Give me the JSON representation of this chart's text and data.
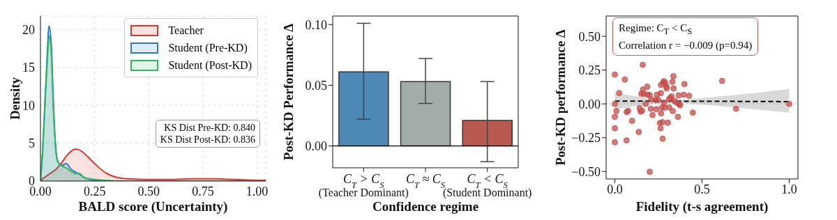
{
  "chart_data": [
    {
      "type": "area",
      "xlabel": "BALD score (Uncertainty)",
      "ylabel": "Density",
      "x": [
        0,
        0.01,
        0.02,
        0.03,
        0.04,
        0.05,
        0.06,
        0.07,
        0.08,
        0.1,
        0.12,
        0.14,
        0.16,
        0.18,
        0.2,
        0.25,
        0.3,
        0.35,
        0.4,
        0.5,
        0.6,
        0.7,
        0.8,
        0.9,
        1.0,
        1.04
      ],
      "series": [
        {
          "name": "Teacher",
          "color": "#d03a2f",
          "values": [
            0,
            0.3,
            0.5,
            0.7,
            0.9,
            1.1,
            1.3,
            1.5,
            1.8,
            2.5,
            3.3,
            3.9,
            4.2,
            4.1,
            3.7,
            2.3,
            1.1,
            0.5,
            0.3,
            0.2,
            0.2,
            0.3,
            0.3,
            0.2,
            0.1,
            0.1
          ]
        },
        {
          "name": "Student (Pre-KD)",
          "color": "#2a7ac8",
          "values": [
            0,
            4,
            10,
            16,
            20.5,
            18,
            10,
            4.5,
            2.6,
            2.1,
            2.3,
            1.6,
            1.2,
            0.9,
            0.5,
            0.1,
            0,
            0,
            0,
            0,
            0,
            0,
            0,
            0,
            0,
            0
          ]
        },
        {
          "name": "Student (Post-KD)",
          "color": "#2db55d",
          "values": [
            0,
            4,
            9.5,
            15,
            19.2,
            17,
            9.5,
            4.5,
            2.5,
            2.0,
            1.7,
            1.3,
            1.0,
            1.0,
            0.5,
            0.2,
            0.1,
            0,
            0,
            0,
            0,
            0,
            0,
            0,
            0,
            0
          ]
        }
      ],
      "xlim": [
        0,
        1.04
      ],
      "ylim": [
        0,
        21.8
      ],
      "xticks": [
        {
          "value": 0,
          "label": "0.00"
        },
        {
          "value": 0.25,
          "label": "0.25"
        },
        {
          "value": 0.5,
          "label": "0.50"
        },
        {
          "value": 0.75,
          "label": "0.75"
        },
        {
          "value": 1,
          "label": "1.00"
        }
      ],
      "yticks": [
        0,
        5,
        10,
        15,
        20
      ],
      "grid": true,
      "legend": "top right",
      "annotations": [
        "KS Dist Pre-KD: 0.840",
        "KS Dist Post-KD: 0.836"
      ]
    },
    {
      "type": "bar",
      "xlabel": "Confidence regime",
      "ylabel": "Post-KD Performance Δ",
      "categories": [
        "C$_{T}$ > C$_{S}$\n(Teacher Dominant)",
        "C$_{T}$ ≈ C$_{S}$",
        "C$_{T}$ < C$_{S}$\n(Student Dominant)"
      ],
      "values": [
        0.061,
        0.053,
        0.021
      ],
      "colors": [
        "#4e88b4",
        "#a2acab",
        "#b85a52"
      ],
      "errors": [
        [
          0.022,
          0.101
        ],
        [
          0.035,
          0.072
        ],
        [
          -0.013,
          0.053
        ]
      ],
      "ylim": [
        -0.018,
        0.107
      ],
      "yticks": [
        {
          "value": 0,
          "label": "0.00"
        },
        {
          "value": 0.05,
          "label": "0.05"
        },
        {
          "value": 0.1,
          "label": "0.10"
        }
      ],
      "ref_lines": [
        {
          "axis": "y",
          "value": 0,
          "color": "#000000"
        }
      ]
    },
    {
      "type": "scatter",
      "xlabel": "Fidelity (t-s agreement)",
      "ylabel": "Post-KD performance Δ",
      "xlim": [
        -0.05,
        1.05
      ],
      "ylim": [
        -0.555,
        0.65
      ],
      "xticks": [
        {
          "value": 0,
          "label": "0.0"
        },
        {
          "value": 0.5,
          "label": "0.5"
        },
        {
          "value": 1,
          "label": "1.0"
        }
      ],
      "yticks": [
        {
          "value": -0.5,
          "label": "−0.50"
        },
        {
          "value": -0.25,
          "label": "−0.25"
        },
        {
          "value": 0,
          "label": "0.00"
        },
        {
          "value": 0.25,
          "label": "0.25"
        },
        {
          "value": 0.5,
          "label": "0.50"
        }
      ],
      "series": [
        {
          "type": "scatter",
          "color": "#c44e4a",
          "marker": "circle",
          "x": [
            0,
            0,
            0,
            0,
            0,
            0.009,
            0.025,
            0.057,
            0.068,
            0.076,
            0.067,
            0.099,
            0.137,
            0.142,
            0.148,
            0.156,
            0.152,
            0.16,
            0.161,
            0.165,
            0.177,
            0.186,
            0.188,
            0.2,
            0.2,
            0.206,
            0.209,
            0.216,
            0.234,
            0.242,
            0.238,
            0.248,
            0.258,
            0.262,
            0.264,
            0.265,
            0.265,
            0.27,
            0.273,
            0.274,
            0.277,
            0.281,
            0.282,
            0.285,
            0.29,
            0.296,
            0.297,
            0.304,
            0.31,
            0.312,
            0.318,
            0.325,
            0.332,
            0.33,
            0.336,
            0.337,
            0.342,
            0.356,
            0.362,
            0.366,
            0.368,
            0.374,
            0.395,
            0.399,
            0.426,
            0.447,
            0.615,
            0.695,
            1.0
          ],
          "values": [
            0.217,
            0,
            -0.096,
            -0.18,
            -0.284,
            -0.053,
            0.08,
            0.18,
            -0.06,
            -0.051,
            -0.27,
            -0.125,
            -0.207,
            -0.031,
            -0.057,
            -0.051,
            0.075,
            0.289,
            0.106,
            0.075,
            0,
            0.127,
            0.068,
            0.065,
            -0.502,
            -0.036,
            0.033,
            -0.082,
            0.029,
            0.068,
            -0.039,
            0.029,
            -0.142,
            -0.18,
            0.08,
            0.14,
            -0.07,
            -0.027,
            -0.135,
            -0.257,
            0.156,
            0.168,
            0.007,
            -0.027,
            0.154,
            0.127,
            0.115,
            -0.139,
            0.033,
            -0.026,
            0.046,
            0.055,
            -0.053,
            0.163,
            0.205,
            0.115,
            0.022,
            0.007,
            -0.096,
            0.063,
            0,
            -0.01,
            0.068,
            0.146,
            0.06,
            -0.065,
            0.17,
            -0.036,
            0
          ]
        },
        {
          "type": "line",
          "color": "#000000",
          "line_style": "dashed",
          "x": [
            0,
            0.15,
            0.35,
            0.6,
            0.8,
            1.0
          ],
          "values": [
            0.021,
            0.02,
            0.02,
            0.019,
            0.018,
            0.017
          ],
          "lower": [
            -0.04,
            -0.01,
            0.008,
            -0.017,
            -0.04,
            -0.065
          ],
          "upper": [
            0.083,
            0.05,
            0.032,
            0.055,
            0.08,
            0.11
          ]
        }
      ],
      "ref_lines": [
        {
          "axis": "y",
          "value": 0,
          "color": "#aaaaaa",
          "line_style": "dotted"
        }
      ],
      "annotations": [
        "Regime: C$_{T}$ < C$_{S}$",
        "Correlation r = −0.009 (p=0.94)"
      ]
    }
  ]
}
